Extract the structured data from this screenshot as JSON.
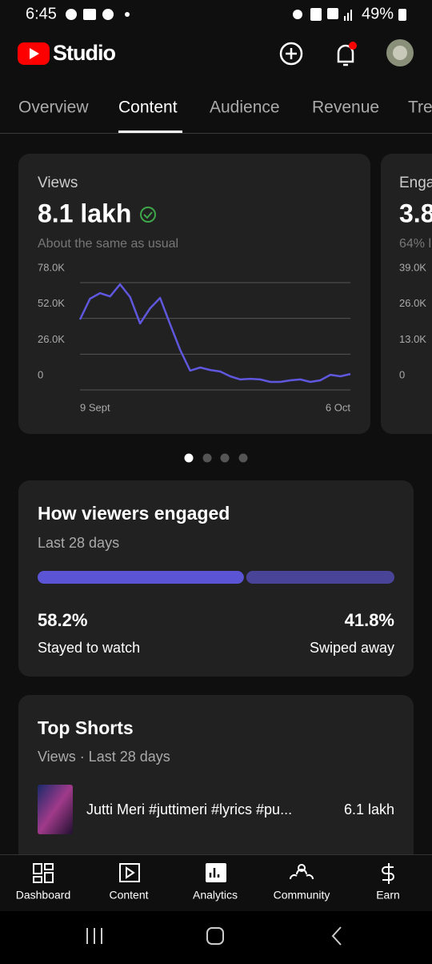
{
  "status_bar": {
    "time": "6:45",
    "battery": "49%"
  },
  "header": {
    "brand": "Studio"
  },
  "tabs": [
    "Overview",
    "Content",
    "Audience",
    "Revenue",
    "Tre"
  ],
  "views_card": {
    "label": "Views",
    "value": "8.1 lakh",
    "note": "About the same as usual"
  },
  "engagement_peek": {
    "label": "Enga",
    "value": "3.8",
    "note": "64% l"
  },
  "chart_data": [
    {
      "type": "line",
      "categories": [
        "9 Sept",
        null,
        null,
        null,
        null,
        null,
        null,
        null,
        null,
        null,
        null,
        null,
        null,
        null,
        null,
        null,
        null,
        null,
        null,
        null,
        null,
        null,
        null,
        null,
        null,
        null,
        null,
        "6 Oct"
      ],
      "values": [
        51200,
        66300,
        70400,
        68000,
        76800,
        67500,
        48300,
        59300,
        66900,
        47700,
        29100,
        14000,
        16300,
        14500,
        13400,
        9900,
        7600,
        8100,
        7600,
        5800,
        5800,
        7000,
        7600,
        5800,
        7000,
        11000,
        9900,
        11600
      ],
      "color": "#5f57dd",
      "ylim": [
        0,
        78000
      ],
      "yticks": [
        {
          "value": 0,
          "label": "0"
        },
        {
          "value": 26000,
          "label": "26.0K"
        },
        {
          "value": 52000,
          "label": "52.0K"
        },
        {
          "value": 78000,
          "label": "78.0K"
        }
      ],
      "grid": true
    },
    {
      "type": "line",
      "ylim": [
        0,
        39000
      ],
      "yticks": [
        {
          "value": 0,
          "label": "0"
        },
        {
          "value": 13000,
          "label": "13.0K"
        },
        {
          "value": 26000,
          "label": "26.0K"
        },
        {
          "value": 39000,
          "label": "39.0K"
        }
      ]
    }
  ],
  "engagement": {
    "title": "How viewers engaged",
    "subtitle": "Last 28 days",
    "values": [
      58.2,
      41.8
    ],
    "value_labels": [
      "58.2%",
      "41.8%"
    ],
    "labels": [
      "Stayed to watch",
      "Swiped away"
    ],
    "colors": [
      "#5b55d6",
      "#4a4499"
    ]
  },
  "top_shorts": {
    "title": "Top Shorts",
    "subtitle": "Views · Last 28 days",
    "items": [
      {
        "title": "Jutti Meri #juttimeri #lyrics #pu...",
        "views": "6.1 lakh"
      }
    ]
  },
  "bottom_nav": [
    "Dashboard",
    "Content",
    "Analytics",
    "Community",
    "Earn"
  ]
}
